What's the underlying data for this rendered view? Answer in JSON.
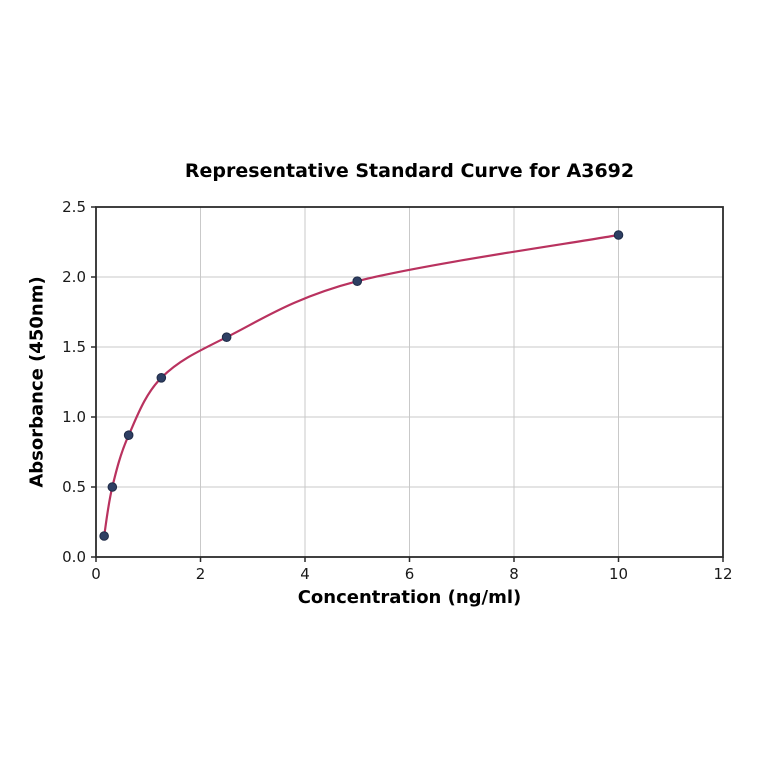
{
  "figure": {
    "title": "Representative Standard Curve for A3692"
  },
  "chart_data": {
    "type": "scatter",
    "title": "Representative Standard Curve for A3692",
    "xlabel": "Concentration (ng/ml)",
    "ylabel": "Absorbance (450nm)",
    "x": [
      0.156,
      0.3125,
      0.625,
      1.25,
      2.5,
      5,
      10
    ],
    "y": [
      0.15,
      0.5,
      0.87,
      1.28,
      1.57,
      1.97,
      2.3
    ],
    "curve": "smooth saturating fit through the data points, drawn from first to last point",
    "xlim": [
      0,
      12
    ],
    "ylim": [
      0,
      2.5
    ],
    "xticks": {
      "values": [
        0,
        2,
        4,
        6,
        8,
        10,
        12
      ],
      "labels": [
        "0",
        "2",
        "4",
        "6",
        "8",
        "10",
        "12"
      ]
    },
    "yticks": {
      "values": [
        0,
        0.5,
        1.0,
        1.5,
        2.0,
        2.5
      ],
      "labels": [
        "0.0",
        "0.5",
        "1.0",
        "1.5",
        "2.0",
        "2.5"
      ]
    },
    "grid": true,
    "legend": "none",
    "colors": {
      "curve": "#b9325f",
      "marker_fill": "#2e3f63",
      "marker_edge": "#1f2b47",
      "grid": "#c9c9c9",
      "spine": "#2b2b2b",
      "tick": "#2b2b2b",
      "background": "#ffffff"
    }
  }
}
